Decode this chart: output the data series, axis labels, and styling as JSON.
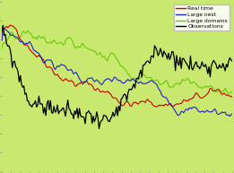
{
  "background_color": "#c8e870",
  "legend_entries": [
    "Real time",
    "Large nest",
    "Large domains",
    "Observations"
  ],
  "legend_colors": [
    "#cc0000",
    "#2222cc",
    "#66cc00",
    "#000000"
  ],
  "n_points": 200,
  "linewidth": 0.8,
  "lw_obs": 0.9,
  "ylim": [
    -3.5,
    1.5
  ],
  "xlim": [
    0,
    199
  ]
}
